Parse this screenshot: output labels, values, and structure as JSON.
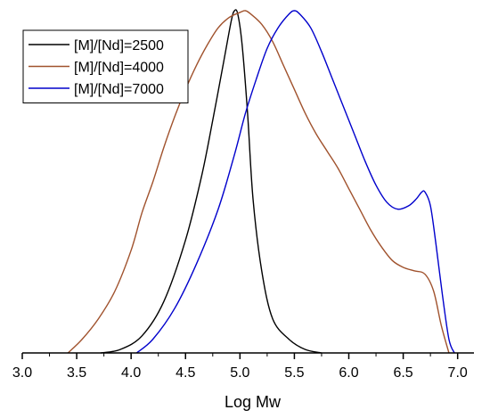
{
  "chart_data": {
    "type": "line",
    "title": "",
    "xlabel": "Log Mw",
    "ylabel": "",
    "xlim": [
      3.0,
      7.15
    ],
    "ylim": [
      0,
      1.0
    ],
    "xticks": [
      "3.0",
      "3.5",
      "4.0",
      "4.5",
      "5.0",
      "5.5",
      "6.0",
      "6.5",
      "7.0"
    ],
    "grid": false,
    "legend": "top-left",
    "series": [
      {
        "name": "[M]/[Nd]=2500",
        "color": "#000000",
        "points": [
          [
            3.72,
            0.0
          ],
          [
            3.9,
            0.01
          ],
          [
            4.1,
            0.05
          ],
          [
            4.3,
            0.15
          ],
          [
            4.5,
            0.33
          ],
          [
            4.65,
            0.52
          ],
          [
            4.75,
            0.68
          ],
          [
            4.85,
            0.85
          ],
          [
            4.92,
            0.97
          ],
          [
            4.95,
            1.0
          ],
          [
            4.98,
            0.99
          ],
          [
            5.02,
            0.9
          ],
          [
            5.07,
            0.7
          ],
          [
            5.12,
            0.45
          ],
          [
            5.2,
            0.24
          ],
          [
            5.3,
            0.1
          ],
          [
            5.45,
            0.04
          ],
          [
            5.6,
            0.01
          ],
          [
            5.75,
            0.0
          ]
        ]
      },
      {
        "name": "[M]/[Nd]=4000",
        "color": "#a0522d",
        "points": [
          [
            3.42,
            0.0
          ],
          [
            3.55,
            0.04
          ],
          [
            3.7,
            0.1
          ],
          [
            3.85,
            0.18
          ],
          [
            4.0,
            0.3
          ],
          [
            4.1,
            0.41
          ],
          [
            4.2,
            0.5
          ],
          [
            4.3,
            0.6
          ],
          [
            4.4,
            0.69
          ],
          [
            4.5,
            0.77
          ],
          [
            4.6,
            0.84
          ],
          [
            4.7,
            0.9
          ],
          [
            4.8,
            0.95
          ],
          [
            4.9,
            0.98
          ],
          [
            5.0,
            0.995
          ],
          [
            5.05,
            1.0
          ],
          [
            5.1,
            0.99
          ],
          [
            5.2,
            0.96
          ],
          [
            5.3,
            0.91
          ],
          [
            5.4,
            0.84
          ],
          [
            5.5,
            0.77
          ],
          [
            5.6,
            0.7
          ],
          [
            5.7,
            0.64
          ],
          [
            5.8,
            0.59
          ],
          [
            5.9,
            0.54
          ],
          [
            6.0,
            0.48
          ],
          [
            6.1,
            0.42
          ],
          [
            6.2,
            0.36
          ],
          [
            6.3,
            0.31
          ],
          [
            6.4,
            0.27
          ],
          [
            6.5,
            0.25
          ],
          [
            6.6,
            0.24
          ],
          [
            6.7,
            0.23
          ],
          [
            6.78,
            0.18
          ],
          [
            6.85,
            0.08
          ],
          [
            6.92,
            0.0
          ]
        ]
      },
      {
        "name": "[M]/[Nd]=7000",
        "color": "#0000cc",
        "points": [
          [
            4.05,
            0.0
          ],
          [
            4.2,
            0.04
          ],
          [
            4.4,
            0.13
          ],
          [
            4.6,
            0.26
          ],
          [
            4.8,
            0.42
          ],
          [
            4.95,
            0.58
          ],
          [
            5.05,
            0.7
          ],
          [
            5.15,
            0.8
          ],
          [
            5.25,
            0.89
          ],
          [
            5.35,
            0.95
          ],
          [
            5.45,
            0.99
          ],
          [
            5.5,
            1.0
          ],
          [
            5.55,
            0.99
          ],
          [
            5.65,
            0.95
          ],
          [
            5.75,
            0.88
          ],
          [
            5.85,
            0.8
          ],
          [
            5.95,
            0.72
          ],
          [
            6.05,
            0.64
          ],
          [
            6.15,
            0.56
          ],
          [
            6.25,
            0.49
          ],
          [
            6.35,
            0.44
          ],
          [
            6.45,
            0.42
          ],
          [
            6.55,
            0.43
          ],
          [
            6.62,
            0.45
          ],
          [
            6.67,
            0.47
          ],
          [
            6.7,
            0.47
          ],
          [
            6.75,
            0.43
          ],
          [
            6.8,
            0.32
          ],
          [
            6.86,
            0.17
          ],
          [
            6.92,
            0.04
          ],
          [
            6.97,
            0.0
          ]
        ]
      }
    ]
  }
}
